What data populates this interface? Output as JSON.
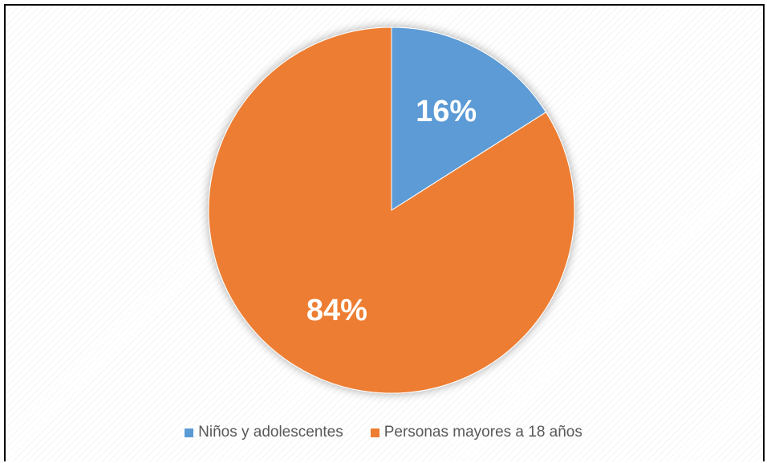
{
  "chart_data": {
    "type": "pie",
    "categories": [
      "Niños y adolescentes",
      "Personas mayores a 18 años"
    ],
    "values": [
      16,
      84
    ],
    "labels": [
      "16%",
      "84%"
    ],
    "colors": [
      "#5B9BD5",
      "#ED7D31"
    ],
    "legend_position": "bottom"
  }
}
